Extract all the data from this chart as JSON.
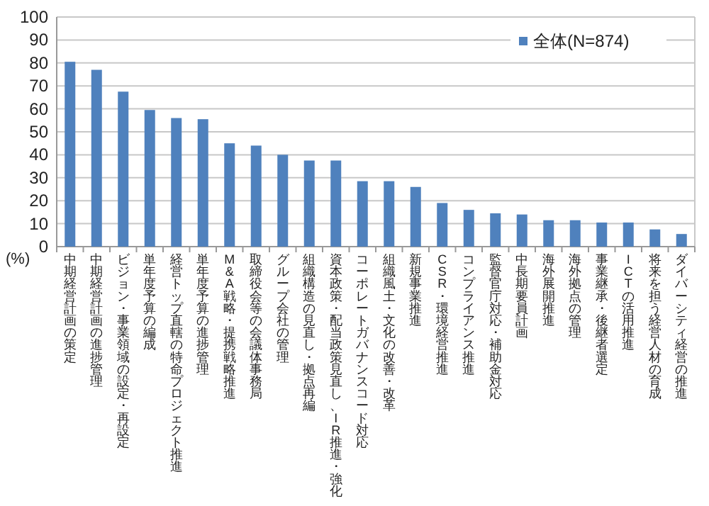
{
  "chart_data": {
    "type": "bar",
    "ylabel": "(%)",
    "categories": [
      "中期経営計画の策定",
      "中期経営計画の進捗管理",
      "ビジョン・事業領域の設定・再設定",
      "単年度予算の編成",
      "経営トップ直轄の特命プロジェクト推進",
      "単年度予算の進捗管理",
      "M&A戦略・提携戦略推進",
      "取締役会等の会議体事務局",
      "グループ会社の管理",
      "組織構造の見直し・拠点再編",
      "資本政策・配当政策見直し、IR推進・強化",
      "コーポレートガバナンスコード対応",
      "組織風土・文化の改善・改革",
      "新規事業推進",
      "CSR・環境経営推進",
      "コンプライアンス推進",
      "監督官庁対応・補助金対応",
      "中長期要員計画",
      "海外展開推進",
      "海外拠点の管理",
      "事業継承・後継者選定",
      "ICTの活用推進",
      "将来を担う経営人材の育成",
      "ダイバーシティ経営の推進"
    ],
    "series": [
      {
        "name": "全体(N=874)",
        "color": "#4f81bd",
        "values": [
          80.5,
          77,
          67.5,
          59.5,
          56,
          55.5,
          45,
          44,
          40,
          37.5,
          37.5,
          28.5,
          28.5,
          26,
          19,
          16,
          14.5,
          14,
          11.5,
          11.5,
          10.5,
          10.5,
          7.5,
          5.5
        ]
      }
    ],
    "ylim": [
      0,
      100
    ],
    "yticks": [
      0,
      10,
      20,
      30,
      40,
      50,
      60,
      70,
      80,
      90,
      100
    ],
    "grid": "y",
    "legend": "top right"
  }
}
